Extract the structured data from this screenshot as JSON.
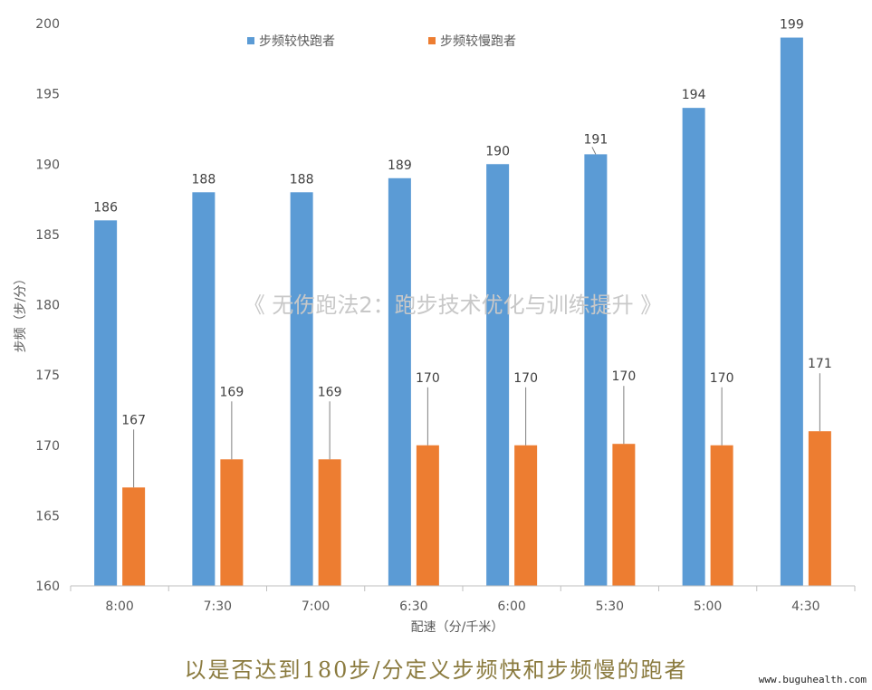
{
  "chart_data": {
    "type": "bar",
    "categories": [
      "8:00",
      "7:30",
      "7:00",
      "6:30",
      "6:00",
      "5:30",
      "5:00",
      "4:30"
    ],
    "series": [
      {
        "name": "步频较快跑者",
        "values": [
          186,
          188,
          188,
          189,
          190,
          190.7,
          194,
          199
        ],
        "labels": [
          "186",
          "188",
          "188",
          "189",
          "190",
          "191",
          "194",
          "199"
        ],
        "color": "#5b9bd5"
      },
      {
        "name": "步频较慢跑者",
        "values": [
          167,
          169,
          169,
          170,
          170,
          170.1,
          170,
          171
        ],
        "labels": [
          "167",
          "169",
          "169",
          "170",
          "170",
          "170",
          "170",
          "171"
        ],
        "color": "#ed7d31"
      }
    ],
    "xlabel": "配速（分/千米）",
    "ylabel": "步频（步/分）",
    "ylim": [
      160,
      200
    ],
    "yticks": [
      160,
      165,
      170,
      175,
      180,
      185,
      190,
      195,
      200
    ],
    "grid": false,
    "legend": "top-center"
  },
  "watermark": "《 无伤跑法2：跑步技术优化与训练提升 》",
  "caption": "以是否达到180步/分定义步频快和步频慢的跑者",
  "site": "www.buguhealth.com"
}
